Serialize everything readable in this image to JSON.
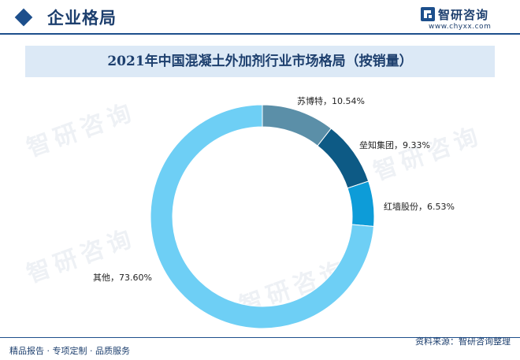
{
  "header": {
    "title": "企业格局",
    "brand_name": "智研咨询",
    "brand_url": "www.chyxx.com"
  },
  "watermark": "智研咨询",
  "colors": {
    "accent": "#1d4f8c",
    "title_band": "#dce9f6",
    "slice_suzhou": "#5b8fa8",
    "slice_lei": "#0d5a85",
    "slice_hongqiang": "#0d9cd8",
    "slice_other": "#6ecff5"
  },
  "chart_data": {
    "type": "pie",
    "variant": "donut",
    "title": "2021年中国混凝土外加剂行业市场格局（按销量）",
    "categories": [
      "苏博特",
      "垒知集团",
      "红墙股份",
      "其他"
    ],
    "values": [
      10.54,
      9.33,
      6.53,
      73.6
    ],
    "labels": [
      "苏博特，10.54%",
      "垒知集团，9.33%",
      "红墙股份，6.53%",
      "其他，73.60%"
    ],
    "colors": [
      "#5b8fa8",
      "#0d5a85",
      "#0d9cd8",
      "#6ecff5"
    ],
    "start_angle": "12 o'clock",
    "direction": "clockwise",
    "legend": "none"
  },
  "footer": {
    "left": "精品报告 · 专项定制 · 品质服务",
    "right": "资料来源：智研咨询整理"
  }
}
